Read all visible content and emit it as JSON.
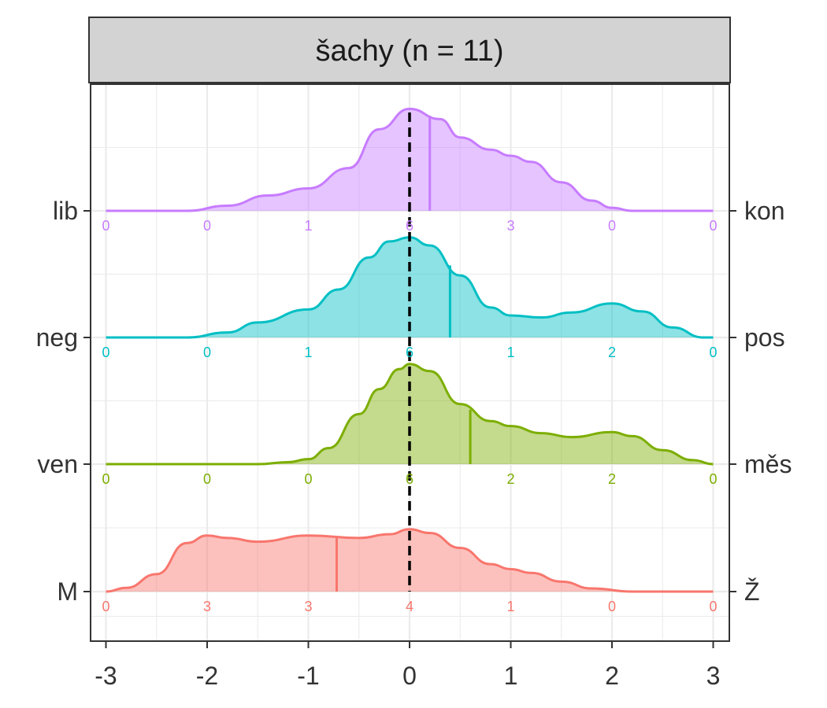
{
  "chart_data": {
    "type": "area",
    "chart_kind": "ridgeline density",
    "facet_title": "šachy (n = 11)",
    "xlim": [
      -3,
      3
    ],
    "x_ticks": [
      "-3",
      "-2",
      "-1",
      "0",
      "1",
      "2",
      "3"
    ],
    "count_positions": [
      -3,
      -2,
      -1,
      0,
      1,
      2,
      3
    ],
    "reference_line_x": 0,
    "grid": true,
    "rows": [
      {
        "left_label": "M",
        "right_label": "Ž",
        "color": "#f8766d",
        "marker_x": -0.72,
        "counts": [
          "0",
          "3",
          "3",
          "4",
          "1",
          "0",
          "0"
        ],
        "density": [
          [
            -3.0,
            0.0
          ],
          [
            -2.8,
            0.06
          ],
          [
            -2.5,
            0.28
          ],
          [
            -2.2,
            0.78
          ],
          [
            -2.0,
            0.9
          ],
          [
            -1.8,
            0.86
          ],
          [
            -1.5,
            0.8
          ],
          [
            -1.0,
            0.9
          ],
          [
            -0.5,
            0.86
          ],
          [
            -0.2,
            0.92
          ],
          [
            0.0,
            1.0
          ],
          [
            0.2,
            0.94
          ],
          [
            0.5,
            0.7
          ],
          [
            0.8,
            0.44
          ],
          [
            1.0,
            0.36
          ],
          [
            1.2,
            0.3
          ],
          [
            1.5,
            0.16
          ],
          [
            1.8,
            0.05
          ],
          [
            2.2,
            0.0
          ],
          [
            3.0,
            0.0
          ]
        ]
      },
      {
        "left_label": "ven",
        "right_label": "měs",
        "color": "#7cae00",
        "marker_x": 0.6,
        "counts": [
          "0",
          "0",
          "0",
          "6",
          "2",
          "2",
          "0"
        ],
        "density": [
          [
            -3.0,
            0.0
          ],
          [
            -1.5,
            0.0
          ],
          [
            -1.2,
            0.02
          ],
          [
            -1.0,
            0.05
          ],
          [
            -0.8,
            0.16
          ],
          [
            -0.5,
            0.5
          ],
          [
            -0.3,
            0.75
          ],
          [
            -0.1,
            0.95
          ],
          [
            0.0,
            1.0
          ],
          [
            0.2,
            0.93
          ],
          [
            0.5,
            0.6
          ],
          [
            0.8,
            0.43
          ],
          [
            1.0,
            0.38
          ],
          [
            1.3,
            0.31
          ],
          [
            1.6,
            0.27
          ],
          [
            2.0,
            0.32
          ],
          [
            2.2,
            0.28
          ],
          [
            2.5,
            0.14
          ],
          [
            2.8,
            0.04
          ],
          [
            3.0,
            0.0
          ]
        ]
      },
      {
        "left_label": "neg",
        "right_label": "pos",
        "color": "#00bfc4",
        "marker_x": 0.4,
        "counts": [
          "0",
          "0",
          "1",
          "6",
          "1",
          "2",
          "0"
        ],
        "density": [
          [
            -3.0,
            0.0
          ],
          [
            -2.2,
            0.0
          ],
          [
            -1.8,
            0.05
          ],
          [
            -1.5,
            0.15
          ],
          [
            -1.0,
            0.28
          ],
          [
            -0.7,
            0.48
          ],
          [
            -0.4,
            0.8
          ],
          [
            -0.2,
            0.96
          ],
          [
            0.0,
            1.0
          ],
          [
            0.2,
            0.92
          ],
          [
            0.5,
            0.62
          ],
          [
            0.8,
            0.3
          ],
          [
            1.0,
            0.22
          ],
          [
            1.3,
            0.2
          ],
          [
            1.6,
            0.25
          ],
          [
            2.0,
            0.34
          ],
          [
            2.3,
            0.26
          ],
          [
            2.6,
            0.1
          ],
          [
            2.9,
            0.0
          ],
          [
            3.0,
            0.0
          ]
        ]
      },
      {
        "left_label": "lib",
        "right_label": "kon",
        "color": "#c77cff",
        "marker_x": 0.2,
        "counts": [
          "0",
          "0",
          "1",
          "6",
          "3",
          "0",
          "0"
        ],
        "density": [
          [
            -3.0,
            0.0
          ],
          [
            -2.2,
            0.0
          ],
          [
            -1.8,
            0.05
          ],
          [
            -1.4,
            0.15
          ],
          [
            -1.0,
            0.22
          ],
          [
            -0.6,
            0.42
          ],
          [
            -0.3,
            0.8
          ],
          [
            0.0,
            1.0
          ],
          [
            0.3,
            0.9
          ],
          [
            0.5,
            0.72
          ],
          [
            0.8,
            0.6
          ],
          [
            1.0,
            0.54
          ],
          [
            1.2,
            0.48
          ],
          [
            1.5,
            0.28
          ],
          [
            1.8,
            0.1
          ],
          [
            2.0,
            0.03
          ],
          [
            2.2,
            0.0
          ],
          [
            3.0,
            0.0
          ]
        ]
      }
    ]
  }
}
